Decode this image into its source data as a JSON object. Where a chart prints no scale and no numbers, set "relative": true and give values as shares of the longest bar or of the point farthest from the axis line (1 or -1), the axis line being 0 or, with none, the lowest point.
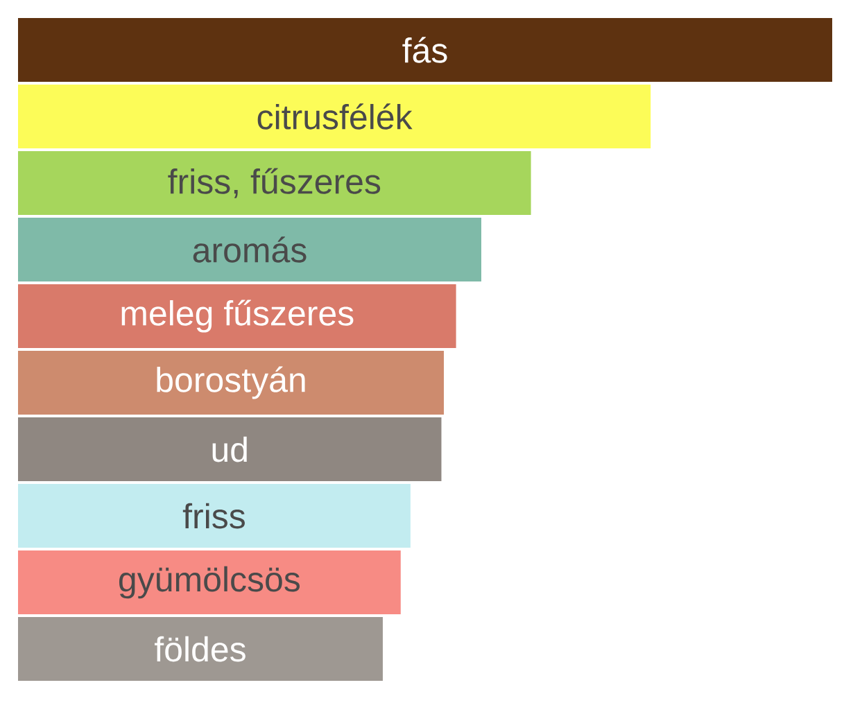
{
  "chart_data": {
    "type": "bar",
    "orientation": "horizontal",
    "relative": true,
    "categories": [
      "fás",
      "citrusfélék",
      "friss, fűszeres",
      "aromás",
      "meleg fűszeres",
      "borostyán",
      "ud",
      "friss",
      "gyümölcsös",
      "földes"
    ],
    "values": [
      1,
      0.777,
      0.63,
      0.569,
      0.538,
      0.523,
      0.52,
      0.482,
      0.47,
      0.448
    ],
    "colors": [
      "#5e3210",
      "#fcfc58",
      "#a6d65c",
      "#7fbaa8",
      "#d97a6a",
      "#cd8b6e",
      "#8f8781",
      "#c2ecf0",
      "#f78b84",
      "#9e9892"
    ]
  }
}
